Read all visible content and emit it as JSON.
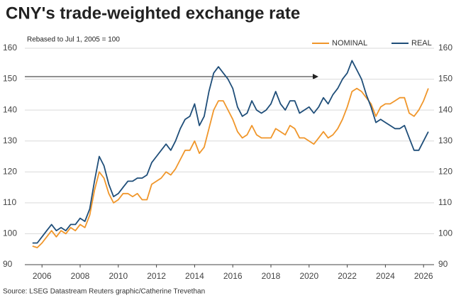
{
  "chart_data": {
    "type": "line",
    "title": "CNY's trade-weighted exchange rate",
    "subtitle": "Rebased to Jul 1, 2005 = 100",
    "source": "Source: LSEG Datastream Reuters graphic/Catherine Trevethan",
    "x": [
      2005.5,
      2005.75,
      2006,
      2006.25,
      2006.5,
      2006.75,
      2007,
      2007.25,
      2007.5,
      2007.75,
      2008,
      2008.25,
      2008.5,
      2008.75,
      2009,
      2009.25,
      2009.5,
      2009.75,
      2010,
      2010.25,
      2010.5,
      2010.75,
      2011,
      2011.25,
      2011.5,
      2011.75,
      2012,
      2012.25,
      2012.5,
      2012.75,
      2013,
      2013.25,
      2013.5,
      2013.75,
      2014,
      2014.25,
      2014.5,
      2014.75,
      2015,
      2015.25,
      2015.5,
      2015.75,
      2016,
      2016.25,
      2016.5,
      2016.75,
      2017,
      2017.25,
      2017.5,
      2017.75,
      2018,
      2018.25,
      2018.5,
      2018.75,
      2019,
      2019.25,
      2019.5,
      2019.75,
      2020,
      2020.25,
      2020.5,
      2020.75,
      2021,
      2021.25,
      2021.5,
      2021.75,
      2022,
      2022.25,
      2022.5,
      2022.75,
      2023,
      2023.25,
      2023.5,
      2023.75,
      2024,
      2024.25,
      2024.5,
      2024.75,
      2025,
      2025.25,
      2025.5,
      2025.75,
      2026,
      2026.25
    ],
    "series": [
      {
        "name": "NOMINAL",
        "color": "#f0962a",
        "values": [
          96,
          95.5,
          97,
          99,
          101,
          99,
          101,
          100,
          102,
          101,
          103,
          102,
          106,
          114,
          120,
          118,
          113,
          110,
          111,
          113,
          113,
          112,
          113,
          111,
          111,
          116,
          117,
          118,
          120,
          119,
          121,
          124,
          127,
          127,
          130,
          126,
          128,
          134,
          140,
          143,
          143,
          140,
          137,
          133,
          131,
          132,
          135,
          132,
          131,
          131,
          131,
          134,
          133,
          132,
          135,
          134,
          131,
          131,
          130,
          129,
          131,
          133,
          131,
          132,
          134,
          137,
          141,
          146,
          147,
          146,
          144,
          142,
          138,
          141,
          142,
          142,
          143,
          144,
          144,
          139,
          138,
          140,
          143,
          147
        ]
      },
      {
        "name": "REAL",
        "color": "#1f4e79",
        "values": [
          97,
          97,
          99,
          101,
          103,
          101,
          102,
          101,
          103,
          103,
          105,
          104,
          108,
          117,
          125,
          122,
          116,
          112,
          113,
          115,
          117,
          117,
          118,
          118,
          119,
          123,
          125,
          127,
          129,
          127,
          130,
          134,
          137,
          138,
          142,
          135,
          138,
          146,
          152,
          154,
          152,
          150,
          147,
          141,
          138,
          139,
          143,
          140,
          139,
          140,
          142,
          146,
          142,
          140,
          143,
          143,
          139,
          140,
          141,
          139,
          141,
          144,
          142,
          145,
          147,
          150,
          152,
          156,
          153,
          150,
          145,
          141,
          136,
          137,
          136,
          135,
          134,
          134,
          135,
          131,
          127,
          127,
          130,
          133
        ]
      }
    ],
    "xlim": [
      2005.1,
      2026.55
    ],
    "xticks": [
      2006,
      2008,
      2010,
      2012,
      2014,
      2016,
      2018,
      2020,
      2022,
      2024,
      2026
    ],
    "ylim": [
      90,
      160
    ],
    "yticks": [
      90,
      100,
      110,
      120,
      130,
      140,
      150,
      160
    ],
    "y2lim": [
      90,
      160
    ],
    "y2ticks": [
      90,
      100,
      110,
      120,
      130,
      140,
      150,
      160
    ],
    "grid": true,
    "legend": "top-right"
  }
}
